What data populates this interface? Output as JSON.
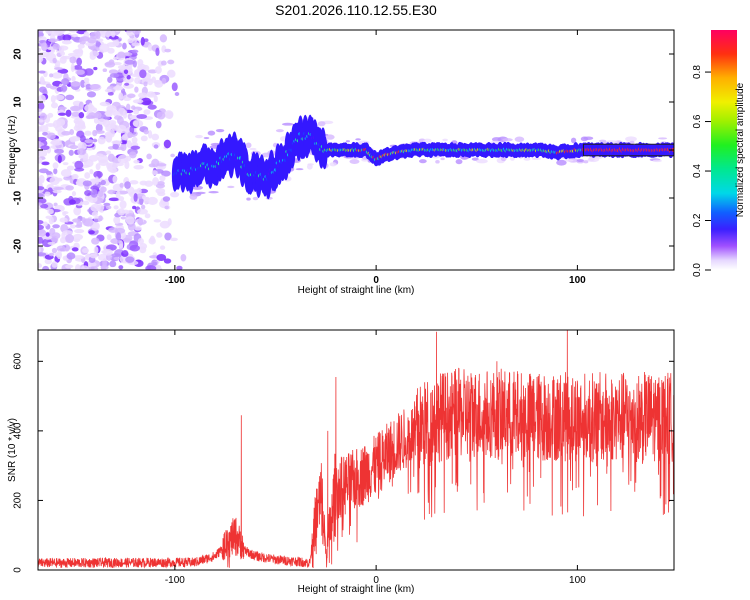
{
  "title": "S201.2026.110.12.55.E30",
  "chart_data": [
    {
      "type": "heatmap",
      "xlabel": "Height of straight line (km)",
      "ylabel": "Frequency (Hz)",
      "xlim": [
        -168,
        148
      ],
      "ylim": [
        -25,
        25
      ],
      "xticks": [
        -100,
        0,
        100
      ],
      "yticks": [
        -20,
        -10,
        0,
        10,
        20
      ],
      "colorbar": {
        "label": "Normalized spectral amplitude",
        "range": [
          0,
          0.97
        ],
        "ticks": [
          0.0,
          0.2,
          0.4,
          0.6,
          0.8
        ],
        "tick_labels": [
          "0.0",
          "0.2",
          "0.4",
          "0.6",
          "0.8"
        ],
        "colormap": "rainbow (white-violet-blue-cyan-green-yellow-red)"
      },
      "ridge_center_hz": [
        [
          -100,
          -5
        ],
        [
          -90,
          -4
        ],
        [
          -80,
          -3
        ],
        [
          -70,
          -1
        ],
        [
          -62,
          -5
        ],
        [
          -55,
          -6
        ],
        [
          -48,
          -3
        ],
        [
          -42,
          0
        ],
        [
          -38,
          3
        ],
        [
          -32,
          3
        ],
        [
          -26,
          0
        ],
        [
          -20,
          0
        ],
        [
          -12,
          0
        ],
        [
          -5,
          0
        ],
        [
          0,
          -2
        ],
        [
          5,
          -1
        ],
        [
          10,
          -0.5
        ],
        [
          20,
          0
        ],
        [
          40,
          0
        ],
        [
          60,
          0
        ],
        [
          80,
          0
        ],
        [
          90,
          -0.5
        ],
        [
          100,
          0
        ],
        [
          148,
          0
        ]
      ],
      "noise_region_km": [
        -168,
        -95
      ]
    },
    {
      "type": "line",
      "xlabel": "Height of straight line (km)",
      "ylabel": "SNR (10 * v/v)",
      "xlim": [
        -168,
        148
      ],
      "ylim": [
        0,
        690
      ],
      "xticks": [
        -100,
        0,
        100
      ],
      "yticks": [
        0,
        200,
        400,
        600
      ],
      "series": [
        {
          "name": "SNR",
          "color": "#ee3333",
          "envelope_x": [
            -168,
            -90,
            -80,
            -70,
            -65,
            -60,
            -50,
            -40,
            -33,
            -30,
            -27,
            -25,
            -20,
            -10,
            0,
            10,
            20,
            30,
            40,
            60,
            80,
            100,
            120,
            148
          ],
          "envelope_mean": [
            20,
            22,
            40,
            100,
            55,
            40,
            30,
            25,
            20,
            150,
            210,
            50,
            230,
            260,
            300,
            360,
            400,
            440,
            450,
            450,
            440,
            440,
            440,
            440
          ],
          "spikes": [
            [
              -67,
              445
            ],
            [
              -20,
              555
            ],
            [
              -24,
              400
            ],
            [
              30,
              685
            ],
            [
              95,
              690
            ],
            [
              60,
              600
            ]
          ]
        }
      ]
    }
  ]
}
